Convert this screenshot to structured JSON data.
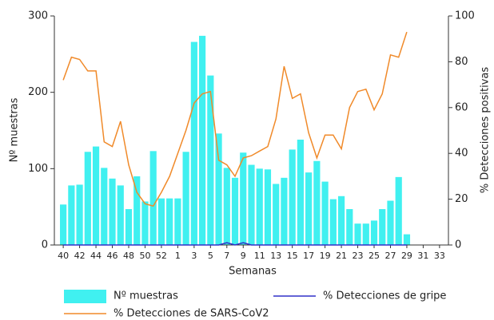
{
  "chart_data": {
    "type": "bar",
    "x_label": "Semanas",
    "y_label": "Nº muestras",
    "y2_label": "% Detecciones positivas",
    "categories": [
      "40",
      null,
      "42",
      null,
      "44",
      null,
      "46",
      null,
      "48",
      null,
      "50",
      null,
      "52",
      null,
      "1",
      null,
      "3",
      null,
      "5",
      null,
      "7",
      null,
      "9",
      null,
      "11",
      null,
      "13",
      null,
      "15",
      null,
      "17",
      null,
      "19",
      null,
      "21",
      null,
      "23",
      null,
      "25",
      null,
      "27",
      null,
      "29",
      null,
      "31",
      null,
      "33"
    ],
    "ylim": [
      0,
      300
    ],
    "yticks": [
      0,
      100,
      200,
      300
    ],
    "y2lim": [
      0,
      100
    ],
    "y2ticks": [
      0,
      20,
      40,
      60,
      80,
      100
    ],
    "series": [
      {
        "name": "Nº muestras",
        "type": "bar",
        "color": "#40f0f0",
        "values": [
          53,
          78,
          79,
          122,
          129,
          101,
          87,
          78,
          47,
          90,
          57,
          123,
          61,
          61,
          61,
          122,
          266,
          274,
          222,
          146,
          101,
          88,
          121,
          105,
          100,
          99,
          80,
          88,
          125,
          138,
          95,
          110,
          83,
          60,
          64,
          47,
          28,
          28,
          32,
          47,
          58,
          89,
          14,
          null,
          null,
          null,
          null
        ]
      },
      {
        "name": "% Detecciones de gripe",
        "type": "line",
        "axis": "y2",
        "color": "#3030c8",
        "values": [
          0,
          0,
          0,
          0,
          0,
          0,
          0,
          0,
          0,
          0,
          0,
          0,
          0,
          0,
          0,
          0,
          0,
          0,
          0,
          0,
          1,
          0,
          1,
          0,
          0,
          0,
          0,
          0,
          0,
          0,
          0,
          0,
          0,
          0,
          0,
          0,
          0,
          0,
          0,
          0,
          0,
          0,
          0,
          null,
          null,
          null,
          null
        ]
      },
      {
        "name": "% Detecciones de SARS-CoV2",
        "type": "line",
        "axis": "y2",
        "color": "#f08a2a",
        "values": [
          72,
          82,
          81,
          76,
          76,
          45,
          43,
          54,
          35,
          23,
          18,
          17,
          23,
          30,
          40,
          50,
          62,
          66,
          67,
          37,
          35,
          30,
          38,
          39,
          41,
          43,
          55,
          78,
          64,
          66,
          49,
          38,
          48,
          48,
          42,
          60,
          67,
          68,
          59,
          66,
          83,
          82,
          93,
          null,
          null,
          null,
          null
        ]
      }
    ]
  }
}
